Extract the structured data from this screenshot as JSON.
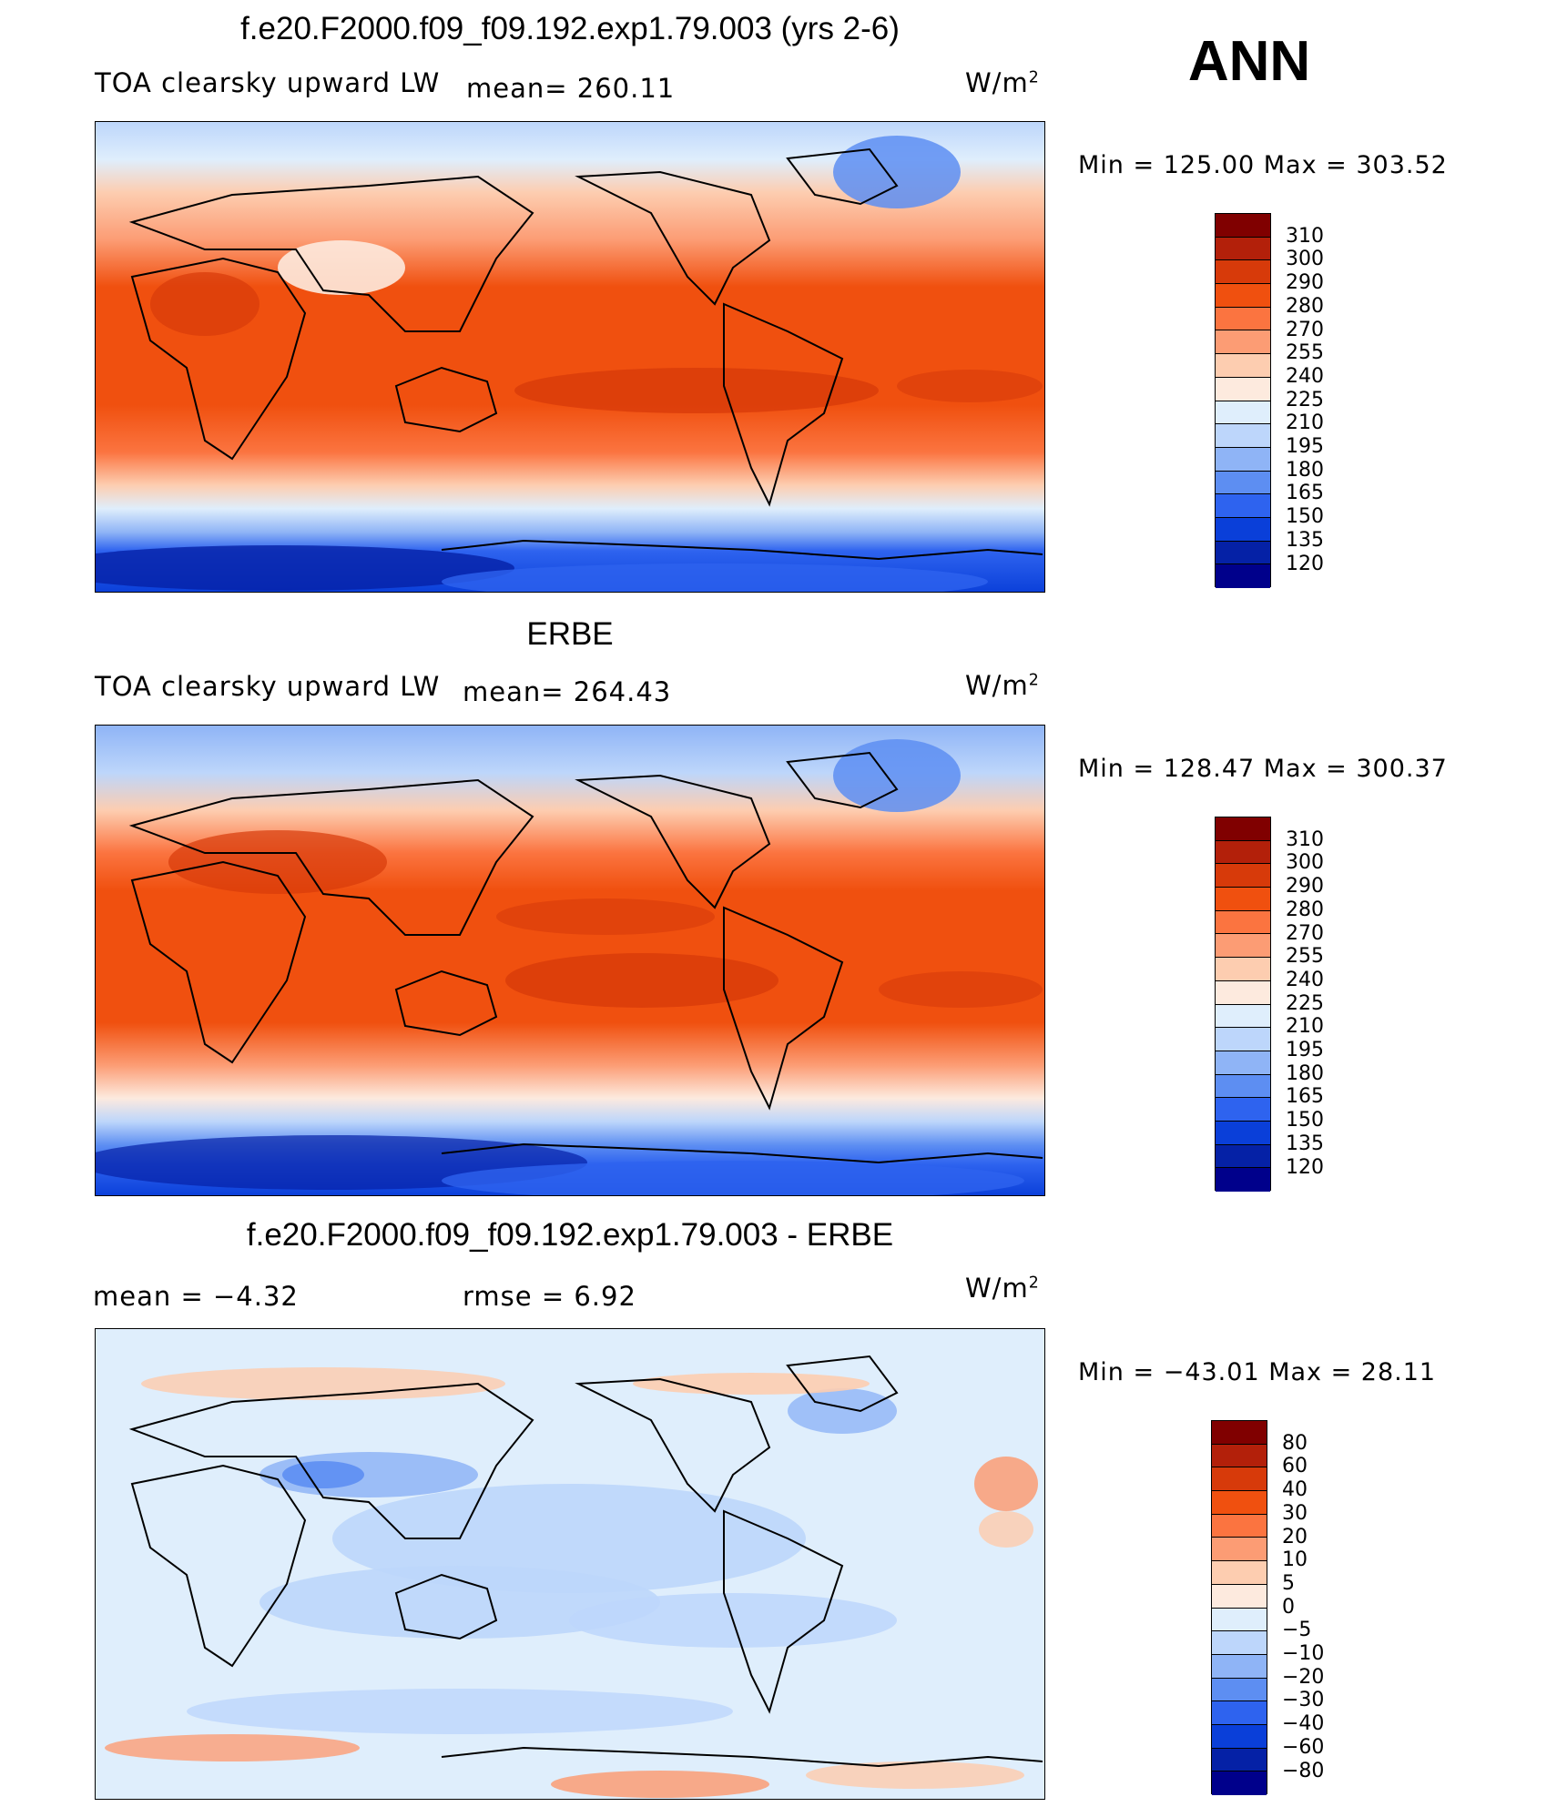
{
  "ann_label": "ANN",
  "panels": [
    {
      "title": "f.e20.F2000.f09_f09.192.exp1.79.003 (yrs 2-6)",
      "left_text": "TOA clearsky upward LW",
      "stat1": "mean= 260.11",
      "stat2": "",
      "units": "W/m",
      "units_sup": "2",
      "minmax": "Min  =  125.00  Max  =  303.52",
      "kind": "model"
    },
    {
      "title": "ERBE",
      "left_text": "TOA clearsky upward LW",
      "stat1": "mean= 264.43",
      "stat2": "",
      "units": "W/m",
      "units_sup": "2",
      "minmax": "Min  =  128.47  Max  =  300.37",
      "kind": "obs"
    },
    {
      "title": "f.e20.F2000.f09_f09.192.exp1.79.003 - ERBE",
      "left_text": "mean  =    −4.32",
      "stat1": "rmse  =     6.92",
      "stat2": "",
      "units": "W/m",
      "units_sup": "2",
      "minmax": "Min  =  −43.01  Max  =    28.11",
      "kind": "diff"
    }
  ],
  "colorbars": [
    {
      "labels": [
        "310",
        "300",
        "290",
        "280",
        "270",
        "255",
        "240",
        "225",
        "210",
        "195",
        "180",
        "165",
        "150",
        "135",
        "120"
      ],
      "colors": [
        "#800000",
        "#b3200a",
        "#d73a0a",
        "#f0500f",
        "#fb7440",
        "#fc9c74",
        "#fdcdb0",
        "#fdeade",
        "#dfeefc",
        "#bdd6fb",
        "#8fb4f6",
        "#5d8ef2",
        "#2e63ef",
        "#0a3fd9",
        "#0521a6",
        "#00008b"
      ]
    },
    {
      "labels": [
        "310",
        "300",
        "290",
        "280",
        "270",
        "255",
        "240",
        "225",
        "210",
        "195",
        "180",
        "165",
        "150",
        "135",
        "120"
      ],
      "colors": [
        "#800000",
        "#b3200a",
        "#d73a0a",
        "#f0500f",
        "#fb7440",
        "#fc9c74",
        "#fdcdb0",
        "#fdeade",
        "#dfeefc",
        "#bdd6fb",
        "#8fb4f6",
        "#5d8ef2",
        "#2e63ef",
        "#0a3fd9",
        "#0521a6",
        "#00008b"
      ]
    },
    {
      "labels": [
        "80",
        "60",
        "40",
        "30",
        "20",
        "10",
        "5",
        "0",
        "−5",
        "−10",
        "−20",
        "−30",
        "−40",
        "−60",
        "−80"
      ],
      "colors": [
        "#800000",
        "#b3200a",
        "#d73a0a",
        "#f0500f",
        "#fb7440",
        "#fc9c74",
        "#fdcdb0",
        "#fdeade",
        "#dfeefc",
        "#bdd6fb",
        "#8fb4f6",
        "#5d8ef2",
        "#2e63ef",
        "#0a3fd9",
        "#0521a6",
        "#00008b"
      ]
    }
  ],
  "chart_data": [
    {
      "type": "heatmap",
      "title": "f.e20.F2000.f09_f09.192.exp1.79.003 (yrs 2-6)",
      "variable": "TOA clearsky upward LW",
      "units": "W/m2",
      "season": "ANN",
      "mean": 260.11,
      "min": 125.0,
      "max": 303.52,
      "contour_levels": [
        120,
        135,
        150,
        165,
        180,
        195,
        210,
        225,
        240,
        255,
        270,
        280,
        290,
        300,
        310
      ]
    },
    {
      "type": "heatmap",
      "title": "ERBE",
      "variable": "TOA clearsky upward LW",
      "units": "W/m2",
      "season": "ANN",
      "mean": 264.43,
      "min": 128.47,
      "max": 300.37,
      "contour_levels": [
        120,
        135,
        150,
        165,
        180,
        195,
        210,
        225,
        240,
        255,
        270,
        280,
        290,
        300,
        310
      ]
    },
    {
      "type": "heatmap",
      "title": "f.e20.F2000.f09_f09.192.exp1.79.003 - ERBE",
      "units": "W/m2",
      "season": "ANN",
      "mean": -4.32,
      "rmse": 6.92,
      "min": -43.01,
      "max": 28.11,
      "contour_levels": [
        -80,
        -60,
        -40,
        -30,
        -20,
        -10,
        -5,
        0,
        5,
        10,
        20,
        30,
        40,
        60,
        80
      ]
    }
  ]
}
